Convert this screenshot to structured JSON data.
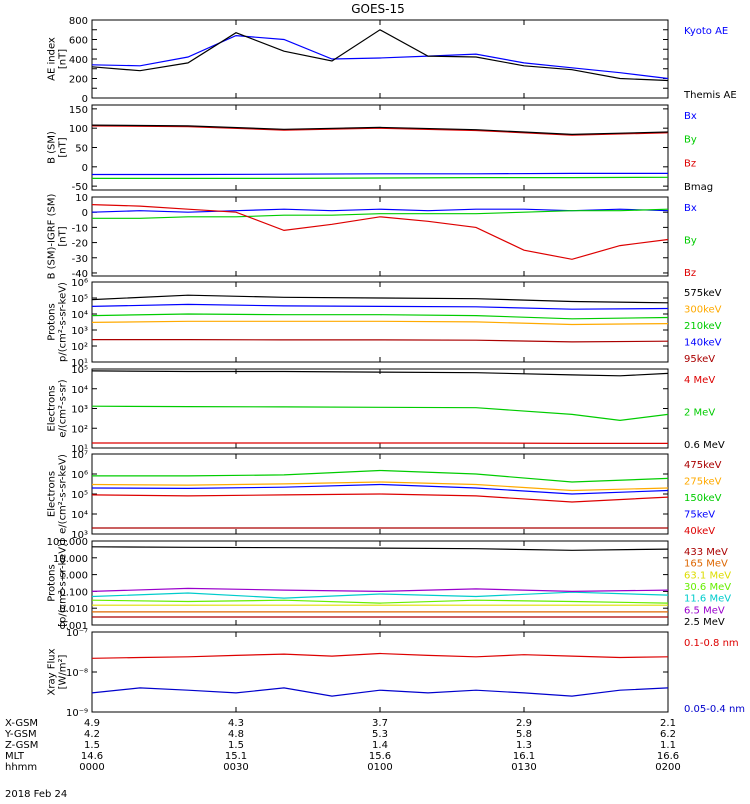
{
  "page_title": "GOES-15",
  "colors": {
    "black": "#000000",
    "blue": "#0000ff",
    "green": "#00cc00",
    "red": "#dd0000",
    "orange": "#ffaa00",
    "cyan": "#00cccc",
    "lime": "#66ee00",
    "yellow": "#dddd00",
    "purple": "#9900cc",
    "darkred": "#aa0000",
    "darkorange": "#dd6600",
    "deepblue": "#0000cc"
  },
  "chart_data": [
    {
      "type": "line",
      "id": "ae",
      "ylabel": [
        "AE index",
        "[nT]"
      ],
      "scale": "linear",
      "ylim": [
        0,
        800
      ],
      "ticks": [
        "0",
        "100",
        "200",
        "300",
        "400",
        "500",
        "600",
        "700",
        "800"
      ],
      "labelled_ticks": [
        0,
        200,
        400,
        600,
        800
      ],
      "x": [
        0,
        10,
        20,
        30,
        40,
        50,
        60,
        70,
        80,
        90,
        100,
        110,
        120
      ],
      "series": [
        {
          "name": "Kyoto AE",
          "color": "#0000ff",
          "values": [
            340,
            330,
            420,
            640,
            600,
            400,
            410,
            430,
            450,
            360,
            310,
            260,
            200
          ]
        },
        {
          "name": "Themis AE",
          "color": "#000000",
          "values": [
            320,
            280,
            360,
            670,
            480,
            380,
            700,
            430,
            420,
            330,
            290,
            200,
            180
          ]
        }
      ]
    },
    {
      "type": "line",
      "id": "bsm",
      "ylabel": [
        "B (SM)",
        "[nT]"
      ],
      "scale": "linear",
      "ylim": [
        -60,
        160
      ],
      "ticks": [
        "-50",
        "0",
        "50",
        "100",
        "150"
      ],
      "x": [
        0,
        20,
        40,
        60,
        80,
        100,
        120
      ],
      "series": [
        {
          "name": "Bx",
          "color": "#0000ff",
          "values": [
            -20,
            -20,
            -19,
            -18,
            -18,
            -17,
            -17
          ]
        },
        {
          "name": "By",
          "color": "#00cc00",
          "values": [
            -30,
            -30,
            -30,
            -29,
            -28,
            -28,
            -27
          ]
        },
        {
          "name": "Bz",
          "color": "#dd0000",
          "values": [
            106,
            104,
            95,
            100,
            94,
            82,
            88
          ]
        },
        {
          "name": "Bmag",
          "color": "#000000",
          "values": [
            108,
            106,
            97,
            102,
            96,
            84,
            90
          ]
        }
      ]
    },
    {
      "type": "line",
      "id": "bigrf",
      "ylabel": [
        "B (SM)-IGRF (SM)",
        "[nT]"
      ],
      "scale": "linear",
      "ylim": [
        -42,
        10
      ],
      "ticks": [
        "-40",
        "-30",
        "-20",
        "-10",
        "0",
        "10"
      ],
      "x": [
        0,
        10,
        20,
        30,
        40,
        50,
        60,
        70,
        80,
        90,
        100,
        110,
        120
      ],
      "series": [
        {
          "name": "Bx",
          "color": "#0000ff",
          "values": [
            0,
            1,
            0,
            1,
            2,
            1,
            2,
            1,
            2,
            2,
            1,
            2,
            1
          ]
        },
        {
          "name": "By",
          "color": "#00cc00",
          "values": [
            -4,
            -4,
            -3,
            -3,
            -2,
            -2,
            -1,
            -1,
            -1,
            0,
            1,
            1,
            2
          ]
        },
        {
          "name": "Bz",
          "color": "#dd0000",
          "values": [
            5,
            4,
            2,
            0,
            -12,
            -8,
            -3,
            -6,
            -10,
            -25,
            -31,
            -22,
            -18
          ]
        }
      ]
    },
    {
      "type": "line",
      "id": "protons1",
      "ylabel": [
        "Protons",
        "p/(cm²-s-sr-keV)"
      ],
      "scale": "log",
      "ylim": [
        10,
        1000000
      ],
      "ticks": [
        "10¹",
        "10²",
        "10³",
        "10⁴",
        "10⁵",
        "10⁶"
      ],
      "x": [
        0,
        20,
        40,
        60,
        80,
        100,
        120
      ],
      "series": [
        {
          "name": "575keV",
          "color": "#000000",
          "values": [
            80000,
            150000,
            110000,
            100000,
            90000,
            60000,
            50000
          ]
        },
        {
          "name": "300keV",
          "color": "#ffaa00",
          "values": [
            3000,
            3500,
            3500,
            3500,
            3200,
            2200,
            2500
          ]
        },
        {
          "name": "210keV",
          "color": "#00cc00",
          "values": [
            8000,
            10000,
            9000,
            9000,
            8000,
            5000,
            6000
          ]
        },
        {
          "name": "140keV",
          "color": "#0000ff",
          "values": [
            30000,
            40000,
            32000,
            30000,
            28000,
            20000,
            22000
          ]
        },
        {
          "name": "95keV",
          "color": "#aa0000",
          "values": [
            250,
            250,
            240,
            240,
            230,
            180,
            200
          ]
        }
      ]
    },
    {
      "type": "line",
      "id": "electrons1",
      "ylabel": [
        "Electrons",
        "e/(cm²-s-sr)"
      ],
      "scale": "log",
      "ylim": [
        10,
        100000
      ],
      "ticks": [
        "10¹",
        "10²",
        "10³",
        "10⁴",
        "10⁵"
      ],
      "x": [
        0,
        20,
        40,
        60,
        80,
        100,
        110,
        120
      ],
      "series": [
        {
          "name": "4 MeV",
          "color": "#dd0000",
          "values": [
            18,
            18,
            18,
            18,
            18,
            17,
            17,
            17
          ]
        },
        {
          "name": "2 MeV",
          "color": "#00cc00",
          "values": [
            1300,
            1250,
            1200,
            1150,
            1100,
            500,
            250,
            500
          ]
        },
        {
          "name": "0.6 MeV",
          "color": "#000000",
          "values": [
            80000,
            75000,
            75000,
            70000,
            65000,
            50000,
            45000,
            60000
          ]
        }
      ]
    },
    {
      "type": "line",
      "id": "electrons2",
      "ylabel": [
        "Electrons",
        "e/(cm²-s-sr-keV)"
      ],
      "scale": "log",
      "ylim": [
        1000,
        10000000
      ],
      "ticks": [
        "10³",
        "10⁴",
        "10⁵",
        "10⁶",
        "10⁷"
      ],
      "x": [
        0,
        20,
        40,
        60,
        80,
        100,
        120
      ],
      "series": [
        {
          "name": "475keV",
          "color": "#aa0000",
          "values": [
            2000,
            2000,
            2000,
            2000,
            2000,
            2000,
            2000
          ]
        },
        {
          "name": "275keV",
          "color": "#ffaa00",
          "values": [
            300000,
            280000,
            320000,
            400000,
            300000,
            150000,
            200000
          ]
        },
        {
          "name": "150keV",
          "color": "#00cc00",
          "values": [
            800000,
            800000,
            900000,
            1500000,
            1000000,
            400000,
            600000
          ]
        },
        {
          "name": "75keV",
          "color": "#0000ff",
          "values": [
            200000,
            190000,
            220000,
            300000,
            200000,
            100000,
            150000
          ]
        },
        {
          "name": "40keV",
          "color": "#dd0000",
          "values": [
            90000,
            80000,
            90000,
            100000,
            80000,
            40000,
            70000
          ]
        }
      ]
    },
    {
      "type": "line",
      "id": "protons2",
      "ylabel": [
        "Protons",
        "[p/(cm²-s-sr-keV)]"
      ],
      "scale": "log",
      "ylim": [
        0.001,
        100
      ],
      "ticks": [
        "0.001",
        "0.010",
        "0.100",
        "1.000",
        "10.000",
        "100.000"
      ],
      "x": [
        0,
        20,
        40,
        60,
        80,
        100,
        120
      ],
      "series": [
        {
          "name": "433 MeV",
          "color": "#aa0000",
          "values": [
            0.003,
            0.003,
            0.003,
            0.003,
            0.003,
            0.003,
            0.003
          ]
        },
        {
          "name": "165 MeV",
          "color": "#dd6600",
          "values": [
            0.006,
            0.006,
            0.006,
            0.006,
            0.006,
            0.006,
            0.006
          ]
        },
        {
          "name": "63.1 MeV",
          "color": "#dddd00",
          "values": [
            0.015,
            0.015,
            0.015,
            0.015,
            0.015,
            0.015,
            0.015
          ]
        },
        {
          "name": "30.6 MeV",
          "color": "#66ee00",
          "values": [
            0.03,
            0.025,
            0.03,
            0.02,
            0.03,
            0.025,
            0.02
          ]
        },
        {
          "name": "11.6 MeV",
          "color": "#00cccc",
          "values": [
            0.05,
            0.08,
            0.04,
            0.07,
            0.05,
            0.09,
            0.06
          ]
        },
        {
          "name": "6.5 MeV",
          "color": "#9900cc",
          "values": [
            0.1,
            0.15,
            0.12,
            0.1,
            0.14,
            0.1,
            0.12
          ]
        },
        {
          "name": "2.5 MeV",
          "color": "#000000",
          "values": [
            45,
            42,
            40,
            38,
            35,
            28,
            33
          ]
        }
      ]
    },
    {
      "type": "line",
      "id": "xray",
      "ylabel": [
        "Xray Flux",
        "[W/m²]"
      ],
      "scale": "log",
      "ylim": [
        1e-09,
        1e-07
      ],
      "ticks": [
        "10⁻⁹",
        "10⁻⁸",
        "10⁻⁷"
      ],
      "x": [
        0,
        10,
        20,
        30,
        40,
        50,
        60,
        70,
        80,
        90,
        100,
        110,
        120
      ],
      "series": [
        {
          "name": "0.1-0.8 nm",
          "color": "#dd0000",
          "values": [
            2.2e-08,
            2.3e-08,
            2.4e-08,
            2.6e-08,
            2.8e-08,
            2.5e-08,
            2.9e-08,
            2.6e-08,
            2.4e-08,
            2.7e-08,
            2.5e-08,
            2.3e-08,
            2.4e-08
          ]
        },
        {
          "name": "0.05-0.4 nm",
          "color": "#0000cc",
          "values": [
            3e-09,
            4e-09,
            3.5e-09,
            3e-09,
            4e-09,
            2.5e-09,
            3.5e-09,
            3e-09,
            3.5e-09,
            3e-09,
            2.5e-09,
            3.5e-09,
            4e-09
          ]
        }
      ]
    }
  ],
  "x_axis": {
    "xlim": [
      0,
      120
    ],
    "tick_positions": [
      0,
      30,
      60,
      90,
      120
    ],
    "rows": [
      {
        "label": "X-GSM",
        "values": [
          "4.9",
          "4.3",
          "3.7",
          "2.9",
          "2.1"
        ]
      },
      {
        "label": "Y-GSM",
        "values": [
          "4.2",
          "4.8",
          "5.3",
          "5.8",
          "6.2"
        ]
      },
      {
        "label": "Z-GSM",
        "values": [
          "1.5",
          "1.5",
          "1.4",
          "1.3",
          "1.1"
        ]
      },
      {
        "label": "MLT",
        "values": [
          "14.6",
          "15.1",
          "15.6",
          "16.1",
          "16.6"
        ]
      },
      {
        "label": "hhmm",
        "values": [
          "0000",
          "0030",
          "0100",
          "0130",
          "0200"
        ]
      }
    ],
    "date": "2018 Feb 24"
  }
}
